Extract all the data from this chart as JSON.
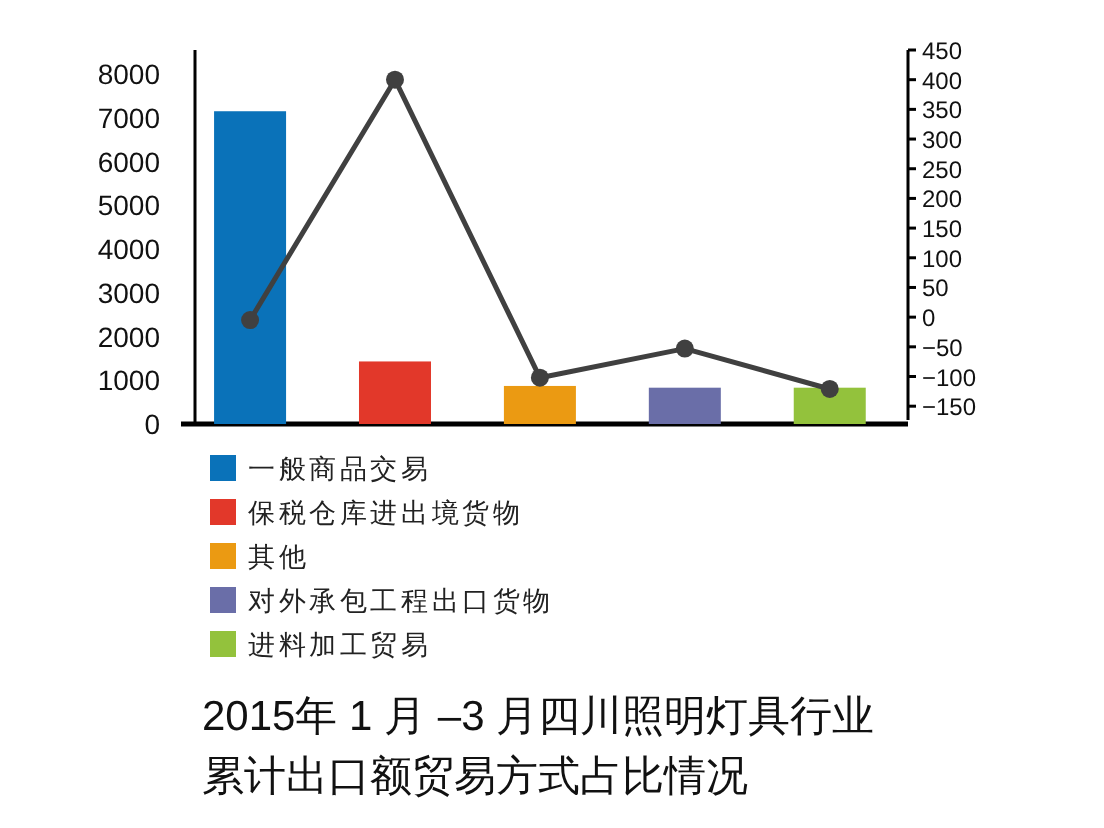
{
  "chart_data": {
    "type": "bar",
    "title": "2015年 1 月 –3 月四川照明灯具行业累计出口额贸易方式占比情况",
    "categories": [
      null,
      null,
      null,
      null,
      null
    ],
    "series": [
      {
        "name": "一般商品交易",
        "color": "#0a72b9",
        "values": [
          7150,
          null,
          null,
          null,
          null
        ]
      },
      {
        "name": "保税仓库进出境货物",
        "color": "#e2382a",
        "values": [
          null,
          1430,
          null,
          null,
          null
        ]
      },
      {
        "name": "其他",
        "color": "#eb9a12",
        "values": [
          null,
          null,
          870,
          null,
          null
        ]
      },
      {
        "name": "对外承包工程出口货物",
        "color": "#6a6ea8",
        "values": [
          null,
          null,
          null,
          830,
          null
        ]
      },
      {
        "name": "进料加工贸易",
        "color": "#93c23c",
        "values": [
          null,
          null,
          null,
          null,
          830
        ]
      },
      {
        "type": "line",
        "axis": "y2",
        "color": "#404040",
        "marker": "circle",
        "values": [
          -5,
          400,
          -102,
          -53,
          -121
        ]
      }
    ],
    "ylim": [
      0,
      8550
    ],
    "yticks": [
      0,
      1000,
      2000,
      3000,
      4000,
      5000,
      6000,
      7000,
      8000
    ],
    "y2lim": [
      -180,
      450
    ],
    "y2ticks": [
      -150,
      -100,
      -50,
      0,
      50,
      100,
      150,
      200,
      250,
      300,
      350,
      400,
      450
    ],
    "tick_labels": "y",
    "legend": "bottom left"
  }
}
